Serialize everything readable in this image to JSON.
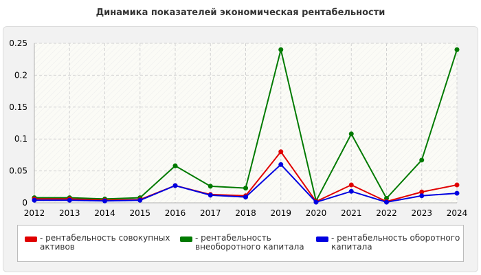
{
  "chart_data": {
    "type": "line",
    "title": "Динамика показателей экономическая рентабельности",
    "xlabel": "",
    "ylabel": "",
    "x": [
      2012,
      2013,
      2014,
      2015,
      2016,
      2017,
      2018,
      2019,
      2020,
      2021,
      2022,
      2023,
      2024
    ],
    "x_tick_labels": [
      "2012",
      "2013",
      "2014",
      "2015",
      "2016",
      "2017",
      "2018",
      "2019",
      "2020",
      "2021",
      "2022",
      "2023",
      "2024"
    ],
    "ylim": [
      0,
      0.25
    ],
    "y_ticks": [
      0,
      0.05,
      0.1,
      0.15,
      0.2,
      0.25
    ],
    "y_tick_labels": [
      "0",
      "0.05",
      "0.1",
      "0.15",
      "0.2",
      "0.25"
    ],
    "grid": true,
    "legend_position": "bottom",
    "series": [
      {
        "name": "рентабельность совокупных активов",
        "legend_lines": [
          "- рентабельность совокупных",
          "активов"
        ],
        "color": "#e00000",
        "values": [
          0.006,
          0.006,
          0.004,
          0.005,
          0.027,
          0.013,
          0.011,
          0.08,
          0.002,
          0.028,
          0.002,
          0.017,
          0.028
        ]
      },
      {
        "name": "рентабельность внеоборотного капитала",
        "legend_lines": [
          "- рентабельность",
          "внеоборотного капитала"
        ],
        "color": "#007a00",
        "values": [
          0.008,
          0.008,
          0.006,
          0.008,
          0.058,
          0.026,
          0.023,
          0.24,
          0.003,
          0.108,
          0.007,
          0.067,
          0.24
        ]
      },
      {
        "name": "рентабельность оборотного капитала",
        "legend_lines": [
          "- рентабельность оборотного",
          "капитала"
        ],
        "color": "#0000e0",
        "values": [
          0.004,
          0.004,
          0.003,
          0.004,
          0.027,
          0.012,
          0.009,
          0.06,
          0.001,
          0.018,
          0.001,
          0.011,
          0.015
        ]
      }
    ]
  }
}
